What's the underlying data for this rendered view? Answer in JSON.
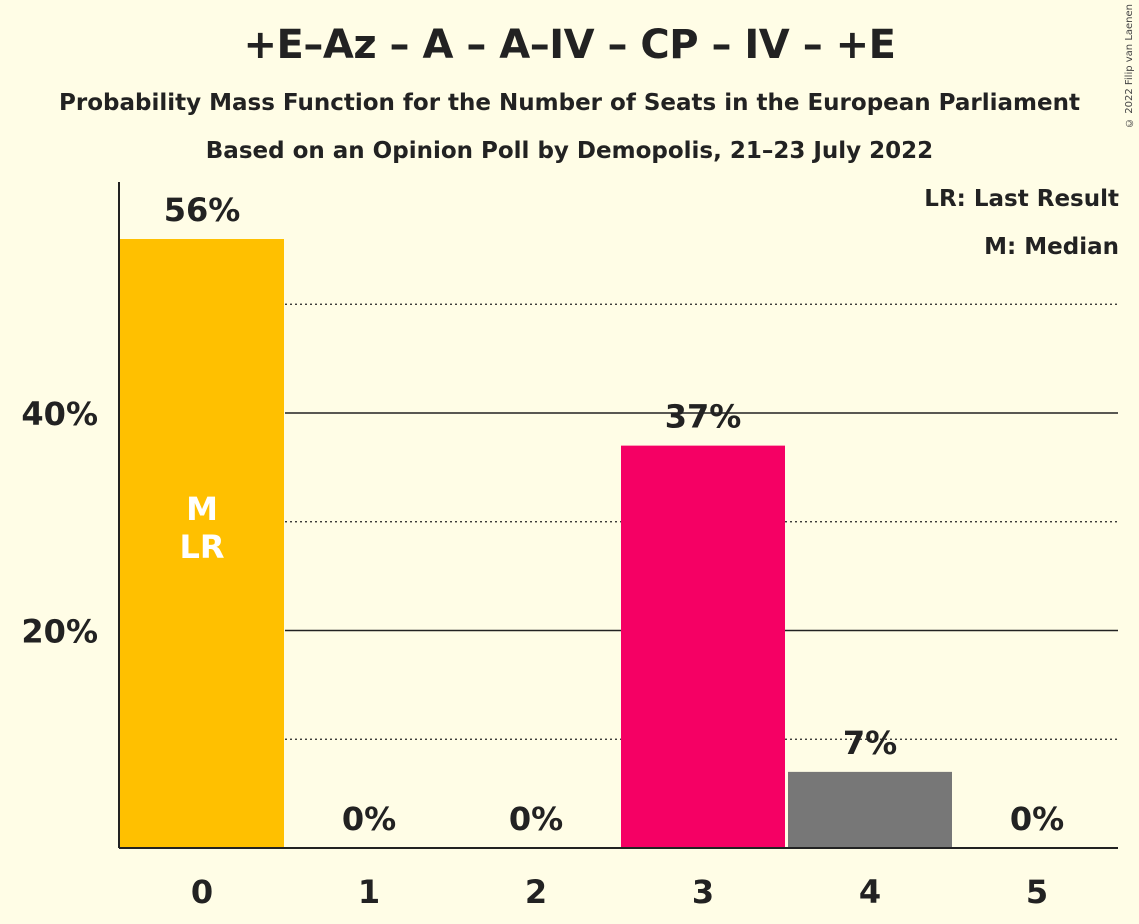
{
  "title": "+E–Az – A – A–IV – CP – IV – +E",
  "subtitle_1": "Probability Mass Function for the Number of Seats in the European Parliament",
  "subtitle_2": "Based on an Opinion Poll by Demopolis, 21–23 July 2022",
  "copyright": "© 2022 Filip van Laenen",
  "legend": {
    "last_result": "LR: Last Result",
    "median": "M: Median"
  },
  "colors": {
    "background": "#fffde6",
    "axis": "#222222"
  },
  "chart_data": {
    "type": "bar",
    "categories": [
      "0",
      "1",
      "2",
      "3",
      "4",
      "5"
    ],
    "values": [
      56,
      0,
      0,
      37,
      7,
      0
    ],
    "value_labels": [
      "56%",
      "0%",
      "0%",
      "37%",
      "7%",
      "0%"
    ],
    "bar_colors": [
      "#ffc000",
      "#ffc000",
      "#ffc000",
      "#f50064",
      "#777777",
      "#777777"
    ],
    "bar_markers": [
      "M\nLR",
      "",
      "",
      "",
      "",
      ""
    ],
    "ylim": [
      0,
      61
    ],
    "y_ticks": [
      20,
      40
    ],
    "y_tick_labels": [
      "20%",
      "40%"
    ],
    "minor_gridlines": [
      10,
      30,
      50
    ],
    "grid": true,
    "legend_position": "top-right"
  }
}
